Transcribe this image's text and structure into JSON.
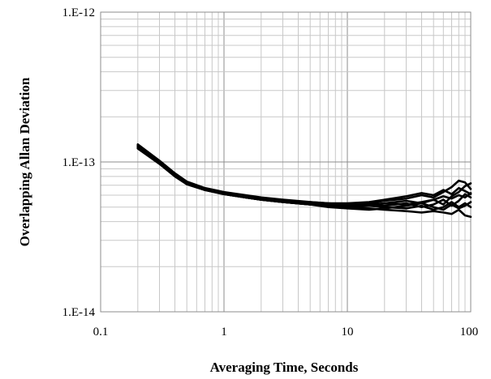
{
  "chart_data": {
    "type": "line",
    "title": "",
    "xlabel": "Averaging Time, Seconds",
    "ylabel": "Overlapping Allan Deviation",
    "xscale": "log",
    "yscale": "log",
    "xlim": [
      0.1,
      100
    ],
    "ylim": [
      1e-14,
      1e-12
    ],
    "grid": true,
    "legend": "none",
    "line_color": "#000000",
    "x_tick_labels": [
      "0.1",
      "1",
      "10",
      "100"
    ],
    "y_tick_labels": [
      "1.E-14",
      "1.E-13",
      "1.E-12"
    ],
    "x": [
      0.2,
      0.3,
      0.4,
      0.5,
      0.7,
      1,
      1.5,
      2,
      3,
      5,
      7,
      10,
      15,
      20,
      30,
      40,
      50,
      60,
      70,
      80,
      90,
      100
    ],
    "series": [
      {
        "values": [
          1.31e-13,
          1.02e-13,
          8.4e-14,
          7.4e-14,
          6.7e-14,
          6.3e-14,
          6e-14,
          5.8e-14,
          5.6e-14,
          5.4e-14,
          5.3e-14,
          5.2e-14,
          5.3e-14,
          5.5e-14,
          5.7e-14,
          6e-14,
          5.8e-14,
          6.3e-14,
          6.8e-14,
          7.5e-14,
          7.3e-14,
          6.6e-14
        ]
      },
      {
        "values": [
          1.29e-13,
          1e-13,
          8.3e-14,
          7.3e-14,
          6.6e-14,
          6.2e-14,
          5.9e-14,
          5.7e-14,
          5.5e-14,
          5.3e-14,
          5.2e-14,
          5.1e-14,
          5.1e-14,
          5.3e-14,
          5.2e-14,
          5.4e-14,
          5.6e-14,
          5.2e-14,
          5.9e-14,
          6.3e-14,
          6.9e-14,
          7.2e-14
        ]
      },
      {
        "values": [
          1.27e-13,
          9.9e-14,
          8.2e-14,
          7.2e-14,
          6.6e-14,
          6.2e-14,
          5.9e-14,
          5.7e-14,
          5.5e-14,
          5.3e-14,
          5.2e-14,
          5.2e-14,
          5.2e-14,
          5.1e-14,
          5.3e-14,
          5e-14,
          5.2e-14,
          5.6e-14,
          5.1e-14,
          5.5e-14,
          6.1e-14,
          5.8e-14
        ]
      },
      {
        "values": [
          1.25e-13,
          9.8e-14,
          8.1e-14,
          7.2e-14,
          6.5e-14,
          6.1e-14,
          5.8e-14,
          5.6e-14,
          5.4e-14,
          5.2e-14,
          5.1e-14,
          5e-14,
          5.1e-14,
          5e-14,
          4.9e-14,
          5.1e-14,
          4.8e-14,
          5e-14,
          5.4e-14,
          5e-14,
          5.3e-14,
          5e-14
        ]
      },
      {
        "values": [
          1.23e-13,
          9.7e-14,
          8e-14,
          7.1e-14,
          6.5e-14,
          6.1e-14,
          5.8e-14,
          5.6e-14,
          5.4e-14,
          5.2e-14,
          5.1e-14,
          5e-14,
          4.9e-14,
          4.8e-14,
          4.7e-14,
          4.6e-14,
          4.7e-14,
          4.6e-14,
          4.5e-14,
          4.8e-14,
          4.4e-14,
          4.3e-14
        ]
      },
      {
        "values": [
          1.28e-13,
          1e-13,
          8.3e-14,
          7.3e-14,
          6.6e-14,
          6.2e-14,
          5.9e-14,
          5.7e-14,
          5.5e-14,
          5.4e-14,
          5.3e-14,
          5.3e-14,
          5.4e-14,
          5.6e-14,
          5.9e-14,
          6.2e-14,
          6e-14,
          6.5e-14,
          6.1e-14,
          6.7e-14,
          6.4e-14,
          6.1e-14
        ]
      },
      {
        "values": [
          1.26e-13,
          9.9e-14,
          8.2e-14,
          7.2e-14,
          6.6e-14,
          6.2e-14,
          5.8e-14,
          5.6e-14,
          5.4e-14,
          5.2e-14,
          5e-14,
          4.9e-14,
          4.8e-14,
          4.9e-14,
          5.1e-14,
          5.3e-14,
          5e-14,
          4.8e-14,
          5.2e-14,
          4.9e-14,
          5.1e-14,
          5.4e-14
        ]
      },
      {
        "values": [
          1.24e-13,
          9.8e-14,
          8.1e-14,
          7.1e-14,
          6.5e-14,
          6.1e-14,
          5.8e-14,
          5.6e-14,
          5.4e-14,
          5.2e-14,
          5.1e-14,
          5.1e-14,
          5.2e-14,
          5.3e-14,
          5.5e-14,
          5.3e-14,
          5.6e-14,
          5.9e-14,
          5.7e-14,
          6e-14,
          5.8e-14,
          6.2e-14
        ]
      }
    ]
  }
}
